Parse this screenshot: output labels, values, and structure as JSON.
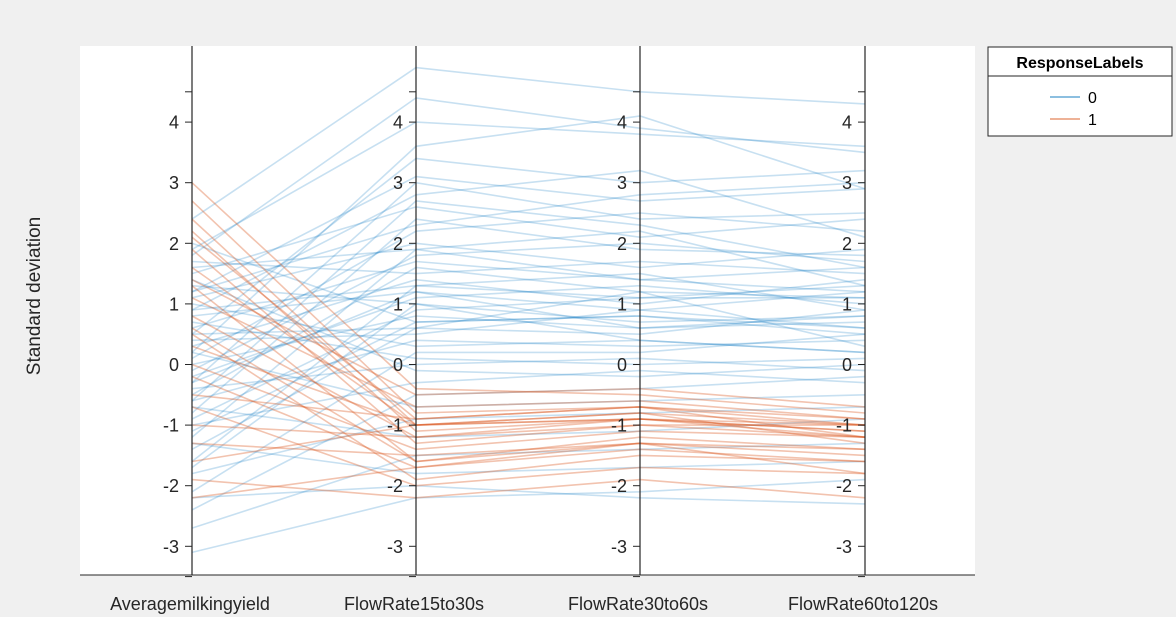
{
  "chart_data": {
    "type": "parallel-coordinates",
    "title": "",
    "ylabel": "Standard deviation",
    "ylim": [
      -3.5,
      5.1
    ],
    "yticks": [
      4,
      3,
      2,
      1,
      0,
      -1,
      -2,
      -3
    ],
    "ytick_labels": [
      "4",
      "3",
      "2",
      "1",
      "0",
      "-1",
      "-2",
      "-3"
    ],
    "categories": [
      "Averagemilkingyield",
      "FlowRate15to30s",
      "FlowRate30to60s",
      "FlowRate60to120s"
    ],
    "legend": {
      "title": "ResponseLabels",
      "placement": "outside-top-right",
      "entries": [
        {
          "label": "0",
          "color": "#0072BD"
        },
        {
          "label": "1",
          "color": "#D95319"
        }
      ]
    },
    "series": [
      {
        "name": "0",
        "color": "#0072BD",
        "opacity": 0.22,
        "lines": [
          [
            2.4,
            4.9,
            4.5,
            4.3
          ],
          [
            1.8,
            4.4,
            3.9,
            3.5
          ],
          [
            1.9,
            4.0,
            3.8,
            3.6
          ],
          [
            0.2,
            3.6,
            4.1,
            2.9
          ],
          [
            0.5,
            3.4,
            3.0,
            3.2
          ],
          [
            1.2,
            3.1,
            2.7,
            2.9
          ],
          [
            -0.3,
            3.0,
            2.4,
            2.5
          ],
          [
            0.9,
            2.8,
            3.2,
            2.1
          ],
          [
            1.5,
            2.6,
            2.1,
            2.4
          ],
          [
            -0.8,
            2.4,
            1.9,
            1.8
          ],
          [
            0.1,
            2.2,
            2.5,
            2.2
          ],
          [
            1.1,
            2.0,
            1.6,
            1.9
          ],
          [
            -1.2,
            1.9,
            2.2,
            1.3
          ],
          [
            0.6,
            1.7,
            1.4,
            1.6
          ],
          [
            -0.5,
            1.6,
            1.2,
            1.1
          ],
          [
            1.7,
            1.5,
            1.7,
            1.5
          ],
          [
            0.3,
            1.4,
            1.0,
            1.4
          ],
          [
            -1.6,
            1.3,
            1.5,
            0.9
          ],
          [
            0.8,
            1.2,
            0.9,
            1.2
          ],
          [
            -0.2,
            1.1,
            1.3,
            1.0
          ],
          [
            1.3,
            1.0,
            0.7,
            0.8
          ],
          [
            -0.9,
            0.9,
            1.1,
            1.3
          ],
          [
            0.0,
            0.8,
            0.6,
            0.7
          ],
          [
            2.0,
            0.7,
            0.8,
            0.5
          ],
          [
            -1.4,
            0.6,
            0.5,
            0.9
          ],
          [
            0.4,
            0.5,
            0.9,
            0.6
          ],
          [
            -0.6,
            0.4,
            0.3,
            0.4
          ],
          [
            1.0,
            0.3,
            0.4,
            0.2
          ],
          [
            -2.1,
            0.2,
            0.2,
            0.5
          ],
          [
            0.7,
            0.1,
            0.0,
            0.1
          ],
          [
            -0.4,
            0.0,
            0.1,
            -0.1
          ],
          [
            1.4,
            -0.1,
            -0.2,
            0.0
          ],
          [
            -1.0,
            -0.3,
            -0.1,
            -0.3
          ],
          [
            -2.4,
            -0.5,
            -0.4,
            -0.2
          ],
          [
            0.2,
            -0.7,
            -0.6,
            -0.5
          ],
          [
            -1.8,
            -0.9,
            -0.8,
            -0.7
          ],
          [
            -0.7,
            -1.2,
            -1.1,
            -0.9
          ],
          [
            -2.7,
            -1.5,
            -1.4,
            -1.3
          ],
          [
            -1.3,
            -1.8,
            -1.7,
            -1.6
          ],
          [
            -3.1,
            -2.2,
            -2.1,
            -1.9
          ],
          [
            -2.2,
            -2.0,
            -2.2,
            -2.3
          ],
          [
            -0.1,
            1.8,
            2.0,
            1.7
          ],
          [
            0.9,
            1.3,
            1.1,
            1.1
          ],
          [
            -1.1,
            0.7,
            0.8,
            0.6
          ],
          [
            1.6,
            1.9,
            1.4,
            1.2
          ],
          [
            -0.3,
            1.2,
            0.6,
            0.8
          ],
          [
            0.5,
            0.6,
            1.2,
            0.3
          ],
          [
            -1.7,
            1.0,
            0.4,
            0.2
          ],
          [
            1.2,
            2.3,
            2.8,
            3.0
          ],
          [
            -0.6,
            2.7,
            2.3,
            1.6
          ]
        ]
      },
      {
        "name": "1",
        "color": "#D95319",
        "opacity": 0.35,
        "lines": [
          [
            3.0,
            -0.4,
            -0.5,
            -0.8
          ],
          [
            2.7,
            -0.8,
            -0.7,
            -1.0
          ],
          [
            2.4,
            -1.0,
            -0.9,
            -1.1
          ],
          [
            2.1,
            -0.9,
            -0.7,
            -1.2
          ],
          [
            1.9,
            -1.3,
            -1.0,
            -1.0
          ],
          [
            1.6,
            -1.0,
            -0.8,
            -1.3
          ],
          [
            1.3,
            -1.6,
            -1.2,
            -1.4
          ],
          [
            1.1,
            -0.7,
            -0.6,
            -0.9
          ],
          [
            0.8,
            -1.2,
            -0.9,
            -1.1
          ],
          [
            0.5,
            -1.9,
            -1.5,
            -1.6
          ],
          [
            0.3,
            -1.0,
            -0.8,
            -1.0
          ],
          [
            0.0,
            -1.4,
            -1.1,
            -1.2
          ],
          [
            -0.2,
            -1.7,
            -1.3,
            -1.5
          ],
          [
            -0.5,
            -0.9,
            -0.7,
            -0.9
          ],
          [
            -0.7,
            -2.0,
            -1.7,
            -1.8
          ],
          [
            -1.0,
            -1.2,
            -1.0,
            -1.2
          ],
          [
            -1.3,
            -1.5,
            -1.3,
            -1.4
          ],
          [
            -1.6,
            -1.0,
            -0.9,
            -1.0
          ],
          [
            -1.9,
            -2.2,
            -1.9,
            -2.2
          ],
          [
            -2.2,
            -1.7,
            -1.4,
            -1.6
          ],
          [
            1.4,
            -0.5,
            -0.4,
            -0.7
          ],
          [
            2.2,
            -1.1,
            -0.9,
            -1.2
          ],
          [
            0.6,
            -1.6,
            -1.3,
            -1.8
          ]
        ]
      }
    ]
  }
}
